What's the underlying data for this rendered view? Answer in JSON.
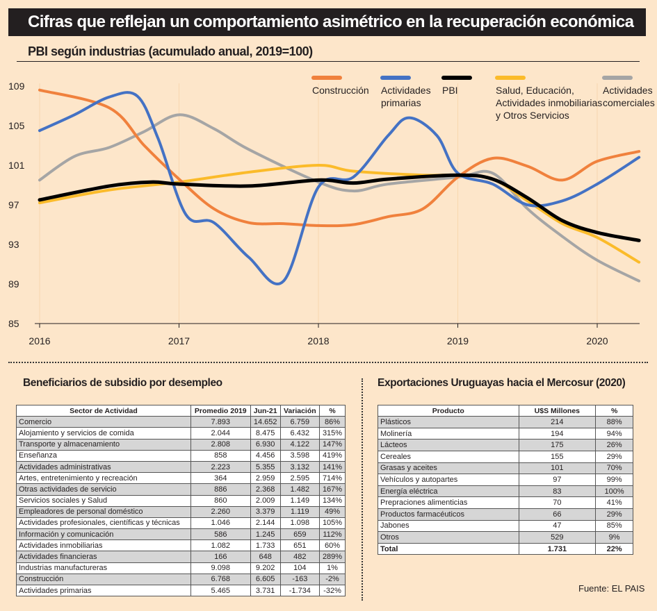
{
  "title": "Cifras que reflejan un comportamiento asimétrico en la recuperación económica",
  "chart_data": {
    "type": "line",
    "title": "PBI según industrias (acumulado anual, 2019=100)",
    "ylim": [
      85,
      109
    ],
    "yticks": [
      "109",
      "105",
      "101",
      "97",
      "93",
      "89",
      "85"
    ],
    "xticks": [
      "2016",
      "2017",
      "2018",
      "2019",
      "2020"
    ],
    "grid": "vertical lines at years",
    "legend_placement": "top-right",
    "series": [
      {
        "name": "Construcción",
        "color": "#f0813d",
        "points": [
          [
            2016,
            108.6
          ],
          [
            2016.5,
            106.8
          ],
          [
            2016.75,
            103
          ],
          [
            2017,
            99.6
          ],
          [
            2017.25,
            96.6
          ],
          [
            2017.5,
            95.2
          ],
          [
            2017.75,
            95.1
          ],
          [
            2018,
            94.9
          ],
          [
            2018.25,
            95
          ],
          [
            2018.5,
            95.8
          ],
          [
            2018.75,
            96.6
          ],
          [
            2019,
            99.8
          ],
          [
            2019.25,
            101.7
          ],
          [
            2019.5,
            100.9
          ],
          [
            2019.75,
            99.5
          ],
          [
            2020,
            101.4
          ],
          [
            2020.3,
            102.4
          ]
        ]
      },
      {
        "name": "Actividades primarias",
        "color": "#4472c4",
        "points": [
          [
            2016,
            104.5
          ],
          [
            2016.25,
            106.1
          ],
          [
            2016.5,
            107.9
          ],
          [
            2016.7,
            108
          ],
          [
            2016.85,
            103.7
          ],
          [
            2017.05,
            96
          ],
          [
            2017.25,
            95.2
          ],
          [
            2017.5,
            91.7
          ],
          [
            2017.75,
            89.3
          ],
          [
            2018,
            98.8
          ],
          [
            2018.25,
            99.8
          ],
          [
            2018.5,
            104
          ],
          [
            2018.65,
            105.8
          ],
          [
            2018.85,
            104
          ],
          [
            2019,
            100.2
          ],
          [
            2019.25,
            99.1
          ],
          [
            2019.5,
            97
          ],
          [
            2019.75,
            97.4
          ],
          [
            2020,
            99.1
          ],
          [
            2020.3,
            101.8
          ]
        ]
      },
      {
        "name": "PBI",
        "color": "#000000",
        "points": [
          [
            2016,
            97.5
          ],
          [
            2016.5,
            98.9
          ],
          [
            2016.8,
            99.3
          ],
          [
            2017,
            99.1
          ],
          [
            2017.5,
            98.9
          ],
          [
            2018,
            99.5
          ],
          [
            2018.25,
            99.2
          ],
          [
            2018.5,
            99.6
          ],
          [
            2019,
            100
          ],
          [
            2019.25,
            99.6
          ],
          [
            2019.5,
            97.7
          ],
          [
            2019.75,
            95.4
          ],
          [
            2020,
            94.2
          ],
          [
            2020.3,
            93.4
          ]
        ]
      },
      {
        "name": "Salud, Educación, Actividades inmobiliarias y Otros Servicios",
        "lines": [
          "Salud, Educación,",
          "Actividades inmobiliarias",
          "y Otros Servicios"
        ],
        "color": "#fbbb2a",
        "points": [
          [
            2016,
            97.2
          ],
          [
            2016.5,
            98.5
          ],
          [
            2017,
            99.3
          ],
          [
            2017.5,
            100.3
          ],
          [
            2018,
            101
          ],
          [
            2018.25,
            100.4
          ],
          [
            2018.75,
            100
          ],
          [
            2019,
            100
          ],
          [
            2019.25,
            99.6
          ],
          [
            2019.5,
            97.4
          ],
          [
            2019.75,
            95.1
          ],
          [
            2020,
            93.7
          ],
          [
            2020.3,
            91.2
          ]
        ]
      },
      {
        "name": "Actividades comerciales",
        "lines": [
          "Actividades",
          "comerciales"
        ],
        "color": "#a5a5a5",
        "points": [
          [
            2016,
            99.5
          ],
          [
            2016.25,
            101.9
          ],
          [
            2016.5,
            102.8
          ],
          [
            2016.75,
            104.4
          ],
          [
            2017,
            106.1
          ],
          [
            2017.25,
            104.7
          ],
          [
            2017.5,
            102.6
          ],
          [
            2018,
            99.3
          ],
          [
            2018.25,
            98.4
          ],
          [
            2018.5,
            99.1
          ],
          [
            2019,
            99.8
          ],
          [
            2019.25,
            100.2
          ],
          [
            2019.5,
            96.6
          ],
          [
            2019.75,
            93.8
          ],
          [
            2020,
            91.4
          ],
          [
            2020.3,
            89.3
          ]
        ]
      }
    ]
  },
  "legend_lines": {
    "0": [
      "Construcción"
    ],
    "1": [
      "Actividades",
      "primarias"
    ],
    "2": [
      "PBI"
    ]
  },
  "subsidio": {
    "title": "Beneficiarios de subsidio por desempleo",
    "headers": [
      "Sector de Actividad",
      "Promedio 2019",
      "Jun-21",
      "Variación",
      "%"
    ],
    "rows": [
      [
        "Comercio",
        "7.893",
        "14.652",
        "6.759",
        "86%"
      ],
      [
        "Alojamiento y servicios de comida",
        "2.044",
        "8.475",
        "6.432",
        "315%"
      ],
      [
        "Transporte y almacenamiento",
        "2.808",
        "6.930",
        "4.122",
        "147%"
      ],
      [
        "Enseñanza",
        "858",
        "4.456",
        "3.598",
        "419%"
      ],
      [
        "Actividades administrativas",
        "2.223",
        "5.355",
        "3.132",
        "141%"
      ],
      [
        "Artes, entretenimiento y recreación",
        "364",
        "2.959",
        "2.595",
        "714%"
      ],
      [
        "Otras actividades de servicio",
        "886",
        "2.368",
        "1.482",
        "167%"
      ],
      [
        "Servicios sociales y Salud",
        "860",
        "2.009",
        "1.149",
        "134%"
      ],
      [
        "Empleadores de personal doméstico",
        "2.260",
        "3.379",
        "1.119",
        "49%"
      ],
      [
        "Actividades profesionales, científicas y técnicas",
        "1.046",
        "2.144",
        "1.098",
        "105%"
      ],
      [
        "Información y comunicación",
        "586",
        "1.245",
        "659",
        "112%"
      ],
      [
        "Actividades inmobiliarias",
        "1.082",
        "1.733",
        "651",
        "60%"
      ],
      [
        "Actividades financieras",
        "166",
        "648",
        "482",
        "289%"
      ],
      [
        "Industrias manufactureras",
        "9.098",
        "9.202",
        "104",
        "1%"
      ],
      [
        "Construcción",
        "6.768",
        "6.605",
        "-163",
        "-2%"
      ],
      [
        "Actividades primarias",
        "5.465",
        "3.731",
        "-1.734",
        "-32%"
      ]
    ]
  },
  "exportaciones": {
    "title": "Exportaciones Uruguayas hacia el Mercosur (2020)",
    "headers": [
      "Producto",
      "U$S Millones",
      "%"
    ],
    "rows": [
      [
        "Plásticos",
        "214",
        "88%"
      ],
      [
        "Molinería",
        "194",
        "94%"
      ],
      [
        "Lácteos",
        "175",
        "26%"
      ],
      [
        "Cereales",
        "155",
        "29%"
      ],
      [
        "Grasas y aceites",
        "101",
        "70%"
      ],
      [
        "Vehículos y autopartes",
        "97",
        "99%"
      ],
      [
        "Energía eléctrica",
        "83",
        "100%"
      ],
      [
        "Prepraciones alimenticias",
        "70",
        "41%"
      ],
      [
        "Productos farmacéuticos",
        "66",
        "29%"
      ],
      [
        "Jabones",
        "47",
        "85%"
      ],
      [
        "Otros",
        "529",
        "9%"
      ]
    ],
    "total": [
      "Total",
      "1.731",
      "22%"
    ]
  },
  "source": "Fuente: EL PAIS"
}
